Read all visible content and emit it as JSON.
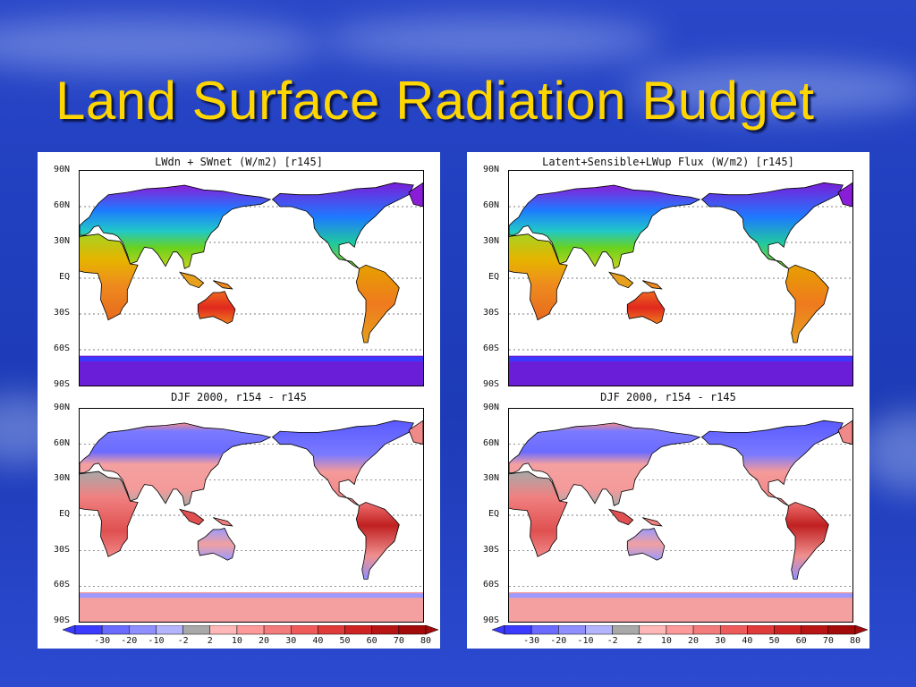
{
  "slide": {
    "title": "Land Surface Radiation Budget"
  },
  "panels": [
    {
      "top_map_title": "LWdn + SWnet (W/m2) [r145]",
      "bottom_map_title": "DJF 2000, r154 - r145"
    },
    {
      "top_map_title": "Latent+Sensible+LWup Flux  (W/m2) [r145]",
      "bottom_map_title": "DJF 2000, r154 - r145"
    }
  ],
  "latitude_labels": [
    "90N",
    "60N",
    "30N",
    "EQ",
    "30S",
    "60S",
    "90S"
  ],
  "colorbar": {
    "labels": [
      "-30",
      "-20",
      "-10",
      "-2",
      "2",
      "10",
      "20",
      "30",
      "40",
      "50",
      "60",
      "70",
      "80"
    ],
    "colors": [
      "#3b3bff",
      "#6b6bff",
      "#8f8fff",
      "#b5b5ff",
      "#a9a9a9",
      "#ffb7b7",
      "#ff9a9a",
      "#f47b7b",
      "#ef5a5a",
      "#e03a3a",
      "#cf2222",
      "#b81414",
      "#a30a0a"
    ]
  },
  "colors": {
    "title": "#ffd600",
    "background": "#1f3fbf"
  }
}
